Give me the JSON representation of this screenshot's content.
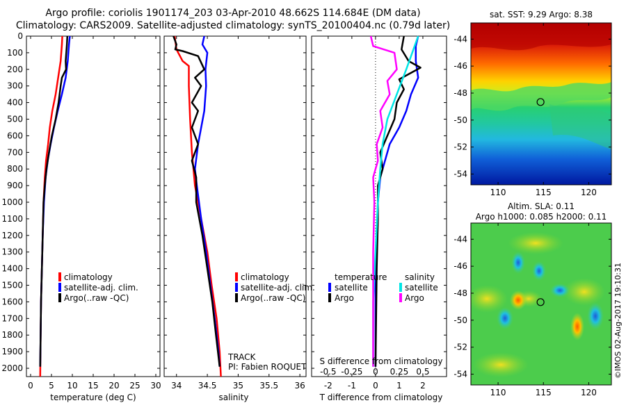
{
  "header": {
    "title_line1": "Argo profile: coriolis 1901174_203 03-Apr-2010 48.662S 114.684E (DM data)",
    "title_line2": "Climatology: CARS2009. Satellite-adjusted climatology: synTS_20100404.nc (0.79d later)"
  },
  "colors": {
    "climatology": "#ff0000",
    "satellite": "#0000ff",
    "argo": "#000000",
    "salinity_satellite": "#00e5e5",
    "salinity_argo": "#ff00ff"
  },
  "chart_data": [
    {
      "type": "line",
      "name": "temperature-profile",
      "xlabel": "temperature (deg C)",
      "xlim": [
        -1,
        31
      ],
      "xticks": [
        0,
        5,
        10,
        15,
        20,
        25,
        30
      ],
      "ylim": [
        0,
        2050
      ],
      "yticks": [
        0,
        100,
        200,
        300,
        400,
        500,
        600,
        700,
        800,
        900,
        1000,
        1100,
        1200,
        1300,
        1400,
        1500,
        1600,
        1700,
        1800,
        1900,
        2000
      ],
      "reversed_y": true,
      "legend": [
        "climatology",
        "satellite-adj. clim.",
        "Argo(..raw -QC)"
      ],
      "series": [
        {
          "name": "climatology",
          "color": "#ff0000",
          "points": [
            [
              7.6,
              0
            ],
            [
              7.5,
              50
            ],
            [
              7.2,
              150
            ],
            [
              6.6,
              250
            ],
            [
              6.0,
              350
            ],
            [
              5.2,
              450
            ],
            [
              4.6,
              550
            ],
            [
              4.2,
              650
            ],
            [
              3.7,
              750
            ],
            [
              3.4,
              850
            ],
            [
              3.1,
              1000
            ],
            [
              2.9,
              1200
            ],
            [
              2.7,
              1400
            ],
            [
              2.5,
              1600
            ],
            [
              2.4,
              1800
            ],
            [
              2.3,
              2050
            ]
          ]
        },
        {
          "name": "satellite-adj. clim.",
          "color": "#0000ff",
          "points": [
            [
              9.4,
              0
            ],
            [
              9.2,
              50
            ],
            [
              8.9,
              150
            ],
            [
              8.4,
              250
            ],
            [
              7.5,
              350
            ],
            [
              6.5,
              450
            ],
            [
              5.6,
              550
            ],
            [
              4.8,
              650
            ],
            [
              4.1,
              750
            ],
            [
              3.6,
              850
            ],
            [
              3.2,
              1000
            ],
            [
              2.9,
              1200
            ],
            [
              2.7,
              1400
            ],
            [
              2.5,
              1600
            ],
            [
              2.4,
              1800
            ],
            [
              2.3,
              1990
            ]
          ]
        },
        {
          "name": "Argo(..raw -QC)",
          "color": "#000000",
          "points": [
            [
              8.8,
              0
            ],
            [
              8.7,
              50
            ],
            [
              8.4,
              150
            ],
            [
              8.5,
              200
            ],
            [
              7.5,
              250
            ],
            [
              7.2,
              300
            ],
            [
              6.7,
              400
            ],
            [
              6.0,
              500
            ],
            [
              5.1,
              600
            ],
            [
              4.4,
              700
            ],
            [
              3.8,
              800
            ],
            [
              3.4,
              900
            ],
            [
              3.1,
              1000
            ],
            [
              2.9,
              1200
            ],
            [
              2.7,
              1400
            ],
            [
              2.5,
              1600
            ],
            [
              2.4,
              1800
            ],
            [
              2.3,
              1990
            ]
          ]
        }
      ]
    },
    {
      "type": "line",
      "name": "salinity-profile",
      "xlabel": "salinity",
      "xlim": [
        33.8,
        36.1
      ],
      "xticks": [
        34,
        34.5,
        35,
        35.5,
        36
      ],
      "ylim": [
        0,
        2050
      ],
      "reversed_y": true,
      "legend": [
        "climatology",
        "satellite-adj. clim.",
        "Argo(..raw -QC)"
      ],
      "annotations": [
        "TRACK",
        "PI: Fabien ROQUET"
      ],
      "series": [
        {
          "name": "climatology",
          "color": "#ff0000",
          "points": [
            [
              33.97,
              0
            ],
            [
              34.0,
              80
            ],
            [
              34.1,
              150
            ],
            [
              34.2,
              180
            ],
            [
              34.2,
              300
            ],
            [
              34.22,
              500
            ],
            [
              34.25,
              700
            ],
            [
              34.3,
              900
            ],
            [
              34.4,
              1100
            ],
            [
              34.5,
              1300
            ],
            [
              34.57,
              1500
            ],
            [
              34.65,
              1700
            ],
            [
              34.7,
              1900
            ],
            [
              34.72,
              2050
            ]
          ]
        },
        {
          "name": "satellite-adj. clim.",
          "color": "#0000ff",
          "points": [
            [
              34.45,
              0
            ],
            [
              34.42,
              50
            ],
            [
              34.5,
              100
            ],
            [
              34.47,
              200
            ],
            [
              34.48,
              300
            ],
            [
              34.45,
              450
            ],
            [
              34.35,
              650
            ],
            [
              34.3,
              800
            ],
            [
              34.33,
              900
            ],
            [
              34.4,
              1100
            ],
            [
              34.48,
              1300
            ],
            [
              34.55,
              1500
            ],
            [
              34.62,
              1700
            ],
            [
              34.68,
              1900
            ],
            [
              34.7,
              1990
            ]
          ]
        },
        {
          "name": "Argo(..raw -QC)",
          "color": "#000000",
          "points": [
            [
              33.95,
              0
            ],
            [
              34.0,
              50
            ],
            [
              33.98,
              80
            ],
            [
              34.1,
              90
            ],
            [
              34.35,
              120
            ],
            [
              34.45,
              200
            ],
            [
              34.3,
              250
            ],
            [
              34.4,
              300
            ],
            [
              34.25,
              400
            ],
            [
              34.35,
              450
            ],
            [
              34.25,
              550
            ],
            [
              34.35,
              650
            ],
            [
              34.25,
              750
            ],
            [
              34.32,
              850
            ],
            [
              34.32,
              1000
            ],
            [
              34.42,
              1200
            ],
            [
              34.5,
              1400
            ],
            [
              34.58,
              1600
            ],
            [
              34.64,
              1800
            ],
            [
              34.7,
              1990
            ]
          ]
        }
      ]
    },
    {
      "type": "line",
      "name": "difference-profile",
      "xlabel": "T difference from climatology",
      "xlabel_top": "S difference from climatology",
      "xlim": [
        -2.7,
        3.0
      ],
      "xticks": [
        -2,
        -1,
        0,
        1,
        2
      ],
      "xticks_top": [
        -0.5,
        -0.25,
        0,
        0.25,
        0.5
      ],
      "ylim": [
        0,
        2050
      ],
      "reversed_y": true,
      "legend_groups": [
        {
          "title": "temperature",
          "entries": [
            {
              "label": "satellite",
              "color": "#0000ff"
            },
            {
              "label": "Argo",
              "color": "#000000"
            }
          ]
        },
        {
          "title": "salinity",
          "entries": [
            {
              "label": "satellite",
              "color": "#00e5e5"
            },
            {
              "label": "Argo",
              "color": "#ff00ff"
            }
          ]
        }
      ],
      "series": [
        {
          "name": "temperature satellite",
          "color": "#0000ff",
          "points": [
            [
              1.8,
              0
            ],
            [
              1.7,
              60
            ],
            [
              1.7,
              150
            ],
            [
              1.8,
              250
            ],
            [
              1.5,
              350
            ],
            [
              1.3,
              450
            ],
            [
              1.0,
              550
            ],
            [
              0.6,
              650
            ],
            [
              0.4,
              750
            ],
            [
              0.2,
              850
            ],
            [
              0.1,
              1000
            ],
            [
              0.0,
              1400
            ],
            [
              0.0,
              1990
            ]
          ]
        },
        {
          "name": "temperature Argo",
          "color": "#000000",
          "points": [
            [
              1.2,
              0
            ],
            [
              1.1,
              80
            ],
            [
              1.4,
              150
            ],
            [
              1.9,
              190
            ],
            [
              1.0,
              260
            ],
            [
              1.2,
              320
            ],
            [
              0.9,
              400
            ],
            [
              0.8,
              500
            ],
            [
              0.5,
              600
            ],
            [
              0.2,
              700
            ],
            [
              0.3,
              800
            ],
            [
              0.1,
              900
            ],
            [
              0.1,
              1100
            ],
            [
              0.05,
              1400
            ],
            [
              0.0,
              1990
            ]
          ]
        },
        {
          "name": "salinity satellite",
          "color": "#00e5e5",
          "points": [
            [
              1.8,
              0
            ],
            [
              1.6,
              80
            ],
            [
              1.3,
              200
            ],
            [
              0.9,
              350
            ],
            [
              0.5,
              500
            ],
            [
              0.3,
              650
            ],
            [
              0.2,
              800
            ],
            [
              0.1,
              1000
            ],
            [
              0.0,
              1300
            ],
            [
              -0.1,
              1600
            ],
            [
              -0.1,
              1800
            ],
            [
              -0.1,
              1990
            ]
          ]
        },
        {
          "name": "salinity Argo",
          "color": "#ff00ff",
          "points": [
            [
              -0.2,
              0
            ],
            [
              -0.1,
              60
            ],
            [
              0.8,
              100
            ],
            [
              0.9,
              200
            ],
            [
              0.5,
              270
            ],
            [
              0.6,
              350
            ],
            [
              0.2,
              450
            ],
            [
              0.3,
              550
            ],
            [
              0.05,
              650
            ],
            [
              0.1,
              750
            ],
            [
              -0.1,
              850
            ],
            [
              -0.05,
              1000
            ],
            [
              -0.1,
              1300
            ],
            [
              -0.1,
              1700
            ],
            [
              -0.1,
              1990
            ]
          ]
        }
      ]
    },
    {
      "type": "heatmap",
      "name": "sst-map",
      "title": "sat. SST: 9.29 Argo: 8.38",
      "xlim": [
        107,
        122.5
      ],
      "ylim": [
        -54.8,
        -42.8
      ],
      "xticks": [
        110,
        115,
        120
      ],
      "yticks": [
        -44,
        -46,
        -48,
        -50,
        -52,
        -54
      ],
      "marker": [
        114.684,
        -48.662
      ]
    },
    {
      "type": "heatmap",
      "name": "sla-map",
      "title_line1": "Altim. SLA: 0.11",
      "title_line2": "Argo h1000: 0.085 h2000: 0.11",
      "xlim": [
        107,
        122.5
      ],
      "ylim": [
        -54.8,
        -42.8
      ],
      "xticks": [
        110,
        115,
        120
      ],
      "yticks": [
        -44,
        -46,
        -48,
        -50,
        -52,
        -54
      ],
      "marker": [
        114.684,
        -48.662
      ]
    }
  ],
  "credit": "©IMOS 02-Aug-2017 19:10:31"
}
